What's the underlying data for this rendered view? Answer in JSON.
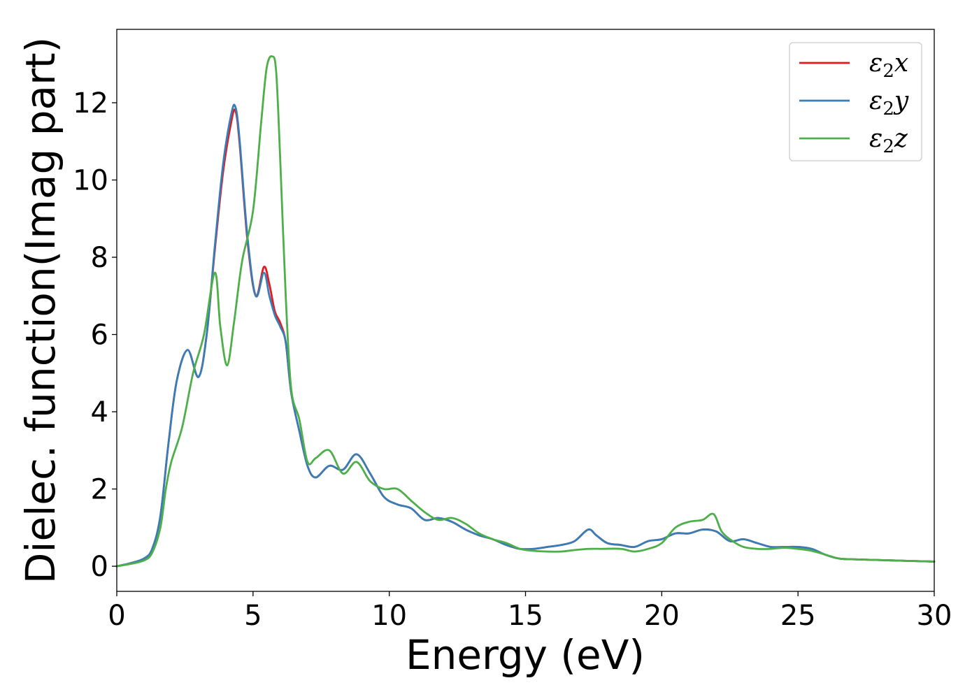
{
  "chart_data": {
    "type": "line",
    "title": "",
    "xlabel": "Energy (eV)",
    "ylabel": "Dielec. function(Imag part)",
    "xlim": [
      0,
      30
    ],
    "ylim": [
      -0.65,
      13.9
    ],
    "xticks": [
      0,
      5,
      10,
      15,
      20,
      25,
      30
    ],
    "xtick_labels": [
      "0",
      "5",
      "10",
      "15",
      "20",
      "25",
      "30"
    ],
    "yticks": [
      0,
      2,
      4,
      6,
      8,
      10,
      12
    ],
    "ytick_labels": [
      "0",
      "2",
      "4",
      "6",
      "8",
      "10",
      "12"
    ],
    "grid": false,
    "legend_position": "top-right",
    "series": [
      {
        "name": "ε2x",
        "legend": {
          "base": "ε",
          "sub": "2",
          "tail": "x"
        },
        "color": "#e41a1c",
        "x": [
          0,
          0.5,
          1.0,
          1.3,
          1.6,
          1.9,
          2.2,
          2.6,
          3.0,
          3.3,
          3.6,
          3.9,
          4.2,
          4.35,
          4.5,
          4.8,
          5.1,
          5.4,
          5.6,
          5.8,
          6.0,
          6.2,
          6.4,
          6.7,
          7.0,
          7.3,
          7.8,
          8.3,
          8.8,
          9.3,
          9.8,
          10.3,
          10.8,
          11.3,
          11.8,
          12.3,
          12.8,
          13.3,
          13.8,
          14.3,
          14.8,
          15.3,
          15.8,
          16.3,
          16.8,
          17.3,
          17.6,
          18.0,
          18.5,
          19.0,
          19.5,
          20.0,
          20.5,
          21.0,
          21.5,
          22.0,
          22.5,
          23.0,
          23.5,
          24.0,
          24.5,
          25.0,
          25.5,
          26.0,
          26.5,
          27.0,
          28.0,
          29.0,
          30.0
        ],
        "y": [
          0,
          0.08,
          0.2,
          0.45,
          1.3,
          3.2,
          4.8,
          5.6,
          4.9,
          6.0,
          8.2,
          10.2,
          11.5,
          11.8,
          11.0,
          8.4,
          7.0,
          7.75,
          7.3,
          6.6,
          6.3,
          5.8,
          4.5,
          3.5,
          2.6,
          2.3,
          2.6,
          2.5,
          2.9,
          2.4,
          1.8,
          1.6,
          1.5,
          1.2,
          1.25,
          1.15,
          0.95,
          0.8,
          0.7,
          0.55,
          0.45,
          0.45,
          0.5,
          0.55,
          0.65,
          0.95,
          0.8,
          0.6,
          0.55,
          0.5,
          0.65,
          0.7,
          0.85,
          0.85,
          0.95,
          0.9,
          0.65,
          0.7,
          0.6,
          0.5,
          0.5,
          0.5,
          0.45,
          0.3,
          0.2,
          0.18,
          0.16,
          0.14,
          0.12
        ]
      },
      {
        "name": "ε2y",
        "legend": {
          "base": "ε",
          "sub": "2",
          "tail": "y"
        },
        "color": "#377eb8",
        "x": [
          0,
          0.5,
          1.0,
          1.3,
          1.6,
          1.9,
          2.2,
          2.6,
          3.0,
          3.3,
          3.6,
          3.9,
          4.2,
          4.35,
          4.5,
          4.8,
          5.1,
          5.4,
          5.6,
          5.8,
          6.0,
          6.2,
          6.4,
          6.7,
          7.0,
          7.3,
          7.8,
          8.3,
          8.8,
          9.3,
          9.8,
          10.3,
          10.8,
          11.3,
          11.8,
          12.3,
          12.8,
          13.3,
          13.8,
          14.3,
          14.8,
          15.3,
          15.8,
          16.3,
          16.8,
          17.3,
          17.6,
          18.0,
          18.5,
          19.0,
          19.5,
          20.0,
          20.5,
          21.0,
          21.5,
          22.0,
          22.5,
          23.0,
          23.5,
          24.0,
          24.5,
          25.0,
          25.5,
          26.0,
          26.5,
          27.0,
          28.0,
          29.0,
          30.0
        ],
        "y": [
          0,
          0.08,
          0.2,
          0.45,
          1.3,
          3.2,
          4.8,
          5.6,
          4.9,
          6.0,
          8.3,
          10.4,
          11.7,
          11.9,
          11.1,
          8.5,
          7.0,
          7.6,
          7.0,
          6.5,
          6.2,
          5.8,
          4.5,
          3.5,
          2.6,
          2.3,
          2.6,
          2.5,
          2.9,
          2.4,
          1.8,
          1.6,
          1.5,
          1.2,
          1.25,
          1.15,
          0.95,
          0.8,
          0.7,
          0.55,
          0.45,
          0.45,
          0.5,
          0.55,
          0.65,
          0.95,
          0.8,
          0.6,
          0.55,
          0.5,
          0.65,
          0.7,
          0.85,
          0.85,
          0.95,
          0.9,
          0.65,
          0.7,
          0.6,
          0.5,
          0.5,
          0.5,
          0.45,
          0.3,
          0.2,
          0.18,
          0.16,
          0.14,
          0.12
        ]
      },
      {
        "name": "ε2z",
        "legend": {
          "base": "ε",
          "sub": "2",
          "tail": "z"
        },
        "color": "#4daf4a",
        "x": [
          0,
          0.5,
          1.0,
          1.3,
          1.6,
          1.8,
          2.0,
          2.4,
          2.8,
          3.2,
          3.6,
          3.8,
          4.05,
          4.3,
          4.6,
          5.0,
          5.3,
          5.5,
          5.7,
          5.85,
          6.0,
          6.2,
          6.4,
          6.7,
          7.0,
          7.3,
          7.8,
          8.3,
          8.8,
          9.3,
          9.8,
          10.3,
          10.8,
          11.3,
          11.8,
          12.3,
          12.8,
          13.3,
          13.8,
          14.3,
          14.8,
          15.3,
          15.8,
          16.3,
          16.8,
          17.3,
          17.8,
          18.5,
          19.0,
          19.5,
          20.0,
          20.5,
          21.0,
          21.5,
          21.9,
          22.2,
          22.6,
          23.0,
          23.5,
          24.0,
          24.5,
          25.0,
          25.5,
          26.0,
          26.5,
          27.0,
          28.0,
          29.0,
          30.0
        ],
        "y": [
          0,
          0.06,
          0.15,
          0.35,
          1.0,
          2.0,
          2.7,
          3.6,
          5.0,
          6.0,
          7.6,
          6.2,
          5.2,
          6.3,
          7.9,
          9.2,
          11.5,
          12.9,
          13.2,
          12.8,
          10.5,
          7.0,
          4.6,
          3.8,
          2.7,
          2.8,
          3.0,
          2.4,
          2.7,
          2.2,
          2.0,
          2.0,
          1.7,
          1.4,
          1.2,
          1.25,
          1.1,
          0.85,
          0.7,
          0.6,
          0.45,
          0.4,
          0.38,
          0.38,
          0.42,
          0.45,
          0.45,
          0.45,
          0.38,
          0.45,
          0.6,
          1.0,
          1.15,
          1.2,
          1.35,
          0.9,
          0.65,
          0.5,
          0.45,
          0.45,
          0.48,
          0.45,
          0.4,
          0.3,
          0.2,
          0.18,
          0.16,
          0.14,
          0.12
        ]
      }
    ]
  }
}
